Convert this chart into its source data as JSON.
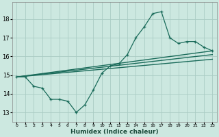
{
  "xlabel": "Humidex (Indice chaleur)",
  "ylabel": "",
  "background_color": "#cce8e0",
  "grid_color": "#aaccc4",
  "line_color": "#1a6b5a",
  "xlim": [
    -0.5,
    23.5
  ],
  "ylim": [
    12.5,
    18.9
  ],
  "yticks": [
    13,
    14,
    15,
    16,
    17,
    18
  ],
  "xticks": [
    0,
    1,
    2,
    3,
    4,
    5,
    6,
    7,
    8,
    9,
    10,
    11,
    12,
    13,
    14,
    15,
    16,
    17,
    18,
    19,
    20,
    21,
    22,
    23
  ],
  "xtick_labels": [
    "0",
    "1",
    "2",
    "3",
    "4",
    "5",
    "6",
    "7",
    "8",
    "9",
    "10",
    "11",
    "12",
    "13",
    "14",
    "15",
    "16",
    "17",
    "18",
    "19",
    "20",
    "21",
    "22",
    "23"
  ],
  "series1_x": [
    0,
    1,
    2,
    3,
    4,
    5,
    6,
    7,
    8,
    9,
    10,
    11,
    12,
    13,
    14,
    15,
    16,
    17,
    18,
    19,
    20,
    21,
    22,
    23
  ],
  "series1_y": [
    14.9,
    14.9,
    14.4,
    14.3,
    13.7,
    13.7,
    13.6,
    13.0,
    13.4,
    14.2,
    15.1,
    15.5,
    15.6,
    16.1,
    17.0,
    17.6,
    18.3,
    18.4,
    17.0,
    16.7,
    16.8,
    16.8,
    16.5,
    16.3
  ],
  "series2_x": [
    0,
    23
  ],
  "series2_y": [
    14.9,
    16.3
  ],
  "series3_x": [
    0,
    23
  ],
  "series3_y": [
    14.9,
    15.85
  ],
  "series4_x": [
    0,
    23
  ],
  "series4_y": [
    14.9,
    16.1
  ]
}
